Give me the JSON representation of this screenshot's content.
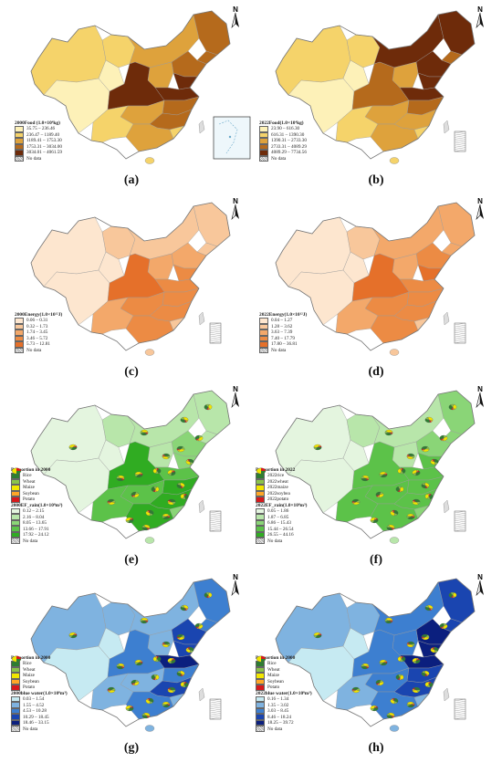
{
  "panels": [
    {
      "caption": "(a)",
      "legend_title": "2000Food (1.0×10⁴kg)",
      "classes": [
        "35.75 – 236.46",
        "236.47 – 1189.40",
        "1189.41 – 1753.30",
        "1753.31 – 3034.00",
        "3034.01 – 4061.59"
      ],
      "colors": [
        "#fdf1b8",
        "#f5d36a",
        "#dea23c",
        "#b56a1c",
        "#6e2b0a"
      ],
      "no_data": "No data"
    },
    {
      "caption": "(b)",
      "legend_title": "2022Food(1.0×10⁴kg)",
      "classes": [
        "23.90 – 616.30",
        "616.31 – 1390.30",
        "1390.31 – 2733.30",
        "2733.31 – 4089.29",
        "4089.29 – 7734.56"
      ],
      "colors": [
        "#fdf1b8",
        "#f5d36a",
        "#dea23c",
        "#b56a1c",
        "#6e2b0a"
      ],
      "no_data": "No data"
    },
    {
      "caption": "(c)",
      "legend_title": "2000Energy(1.0×10¹²J)",
      "classes": [
        "0.06 – 0.31",
        "0.32 – 1.73",
        "1.74 – 3.45",
        "3.46 – 5.72",
        "5.73 – 12.81"
      ],
      "colors": [
        "#fde6cf",
        "#f8c79b",
        "#f3a86a",
        "#ec8b44",
        "#e5702a"
      ],
      "no_data": "No data"
    },
    {
      "caption": "(d)",
      "legend_title": "2022Energy(1.0×10¹²J)",
      "classes": [
        "0.04 – 1.27",
        "1.28 – 3.62",
        "3.63 – 7.39",
        "7.40 – 17.79",
        "17.80 – 36.81"
      ],
      "colors": [
        "#fde6cf",
        "#f8c79b",
        "#f3a86a",
        "#ec8b44",
        "#e5702a"
      ],
      "no_data": "No data"
    },
    {
      "caption": "(e)",
      "pie_title": "Proportion in 2000",
      "crops": [
        "Rice",
        "Wheat",
        "Maize",
        "Soybean",
        "Potato"
      ],
      "crop_colors": [
        "#2e7d32",
        "#8bc34a",
        "#f2e600",
        "#ffa726",
        "#d7191c"
      ],
      "legend_title": "2000EF_rain(1.0×10⁸m³)",
      "classes": [
        "0.12 – 2.15",
        "2.16 – 8.04",
        "8.05 – 13.65",
        "13.66 – 17.91",
        "17.92 – 24.12"
      ],
      "colors": [
        "#e4f5df",
        "#b8e6aa",
        "#8ad577",
        "#5cc249",
        "#30ac22"
      ],
      "no_data": "No data"
    },
    {
      "caption": "(f)",
      "pie_title": "Proportion in 2022",
      "crops": [
        "2022rice",
        "2022wheat",
        "2022maize",
        "2022soybea",
        "2022potato"
      ],
      "crop_colors": [
        "#2e7d32",
        "#8bc34a",
        "#f2e600",
        "#ffa726",
        "#d7191c"
      ],
      "legend_title": "2022EF_rain(1.0×10⁸m³)",
      "classes": [
        "0.05 – 1.86",
        "1.87 – 6.85",
        "6.86 – 15.43",
        "15.44 – 26.54",
        "26.55 – 44.16"
      ],
      "colors": [
        "#e4f5df",
        "#b8e6aa",
        "#8ad577",
        "#5cc249",
        "#30ac22"
      ],
      "no_data": "No data"
    },
    {
      "caption": "(g)",
      "pie_title": "Proportion in 2000",
      "crops": [
        "Rice",
        "Wheat",
        "Maize",
        "Soybean",
        "Potato"
      ],
      "crop_colors": [
        "#2e7d32",
        "#8bc34a",
        "#f2e600",
        "#ffa726",
        "#d7191c"
      ],
      "legend_title": "2000blue water(1.0×10⁸m³)",
      "classes": [
        "0.03 – 1.54",
        "1.55 – 4.52",
        "4.53 – 10.28",
        "10.29 – 18.45",
        "18.46 – 33.15"
      ],
      "colors": [
        "#c6eaf2",
        "#7fb3e0",
        "#3d7fd0",
        "#1a45b0",
        "#0b1f7e"
      ],
      "no_data": "No data"
    },
    {
      "caption": "(h)",
      "pie_title": "Proportion in 2000",
      "crops": [
        "Rice",
        "Wheat",
        "Maize",
        "Soybean",
        "Potato"
      ],
      "crop_colors": [
        "#2e7d32",
        "#8bc34a",
        "#f2e600",
        "#ffa726",
        "#d7191c"
      ],
      "legend_title": "2022blue water(1.0×10⁸m³)",
      "classes": [
        "0.16 – 1.34",
        "1.35 – 3.02",
        "3.03 – 8.45",
        "8.46 – 18.24",
        "18.25 – 39.72"
      ],
      "colors": [
        "#c6eaf2",
        "#7fb3e0",
        "#3d7fd0",
        "#1a45b0",
        "#0b1f7e"
      ],
      "no_data": "No data"
    }
  ],
  "north_label": "N",
  "no_data_fill": "#dddddd"
}
